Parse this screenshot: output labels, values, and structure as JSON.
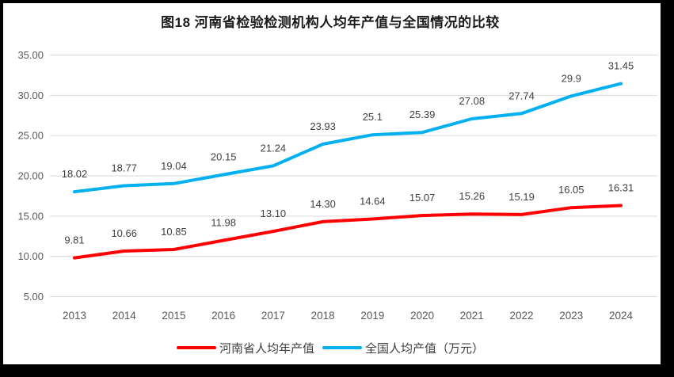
{
  "chart_data": {
    "type": "line",
    "title": "图18  河南省检验检测机构人均年产值与全国情况的比较",
    "categories": [
      "2013",
      "2014",
      "2015",
      "2016",
      "2017",
      "2018",
      "2019",
      "2020",
      "2021",
      "2022",
      "2023",
      "2024"
    ],
    "series": [
      {
        "name": "河南省人均年产值",
        "color": "#FF0000",
        "values": [
          9.81,
          10.66,
          10.85,
          11.98,
          13.1,
          14.3,
          14.64,
          15.07,
          15.26,
          15.19,
          16.05,
          16.31
        ],
        "labels": [
          "9.81",
          "10.66",
          "10.85",
          "11.98",
          "13.10",
          "14.30",
          "14.64",
          "15.07",
          "15.26",
          "15.19",
          "16.05",
          "16.31"
        ]
      },
      {
        "name": "全国人均产值（万元）",
        "color": "#00B0F0",
        "values": [
          18.02,
          18.77,
          19.04,
          20.15,
          21.24,
          23.93,
          25.1,
          25.39,
          27.08,
          27.74,
          29.9,
          31.45
        ],
        "labels": [
          "18.02",
          "18.77",
          "19.04",
          "20.15",
          "21.24",
          "23.93",
          "25.1",
          "25.39",
          "27.08",
          "27.74",
          "29.9",
          "31.45"
        ]
      }
    ],
    "y_ticks": [
      "35.00",
      "30.00",
      "25.00",
      "20.00",
      "15.00",
      "10.00",
      "5.00"
    ],
    "ylim": [
      5,
      35
    ],
    "grid": true,
    "grid_color": "#D9D9D9",
    "axis_text_color": "#595959",
    "data_label_color": "#404040",
    "legend_position": "bottom"
  }
}
